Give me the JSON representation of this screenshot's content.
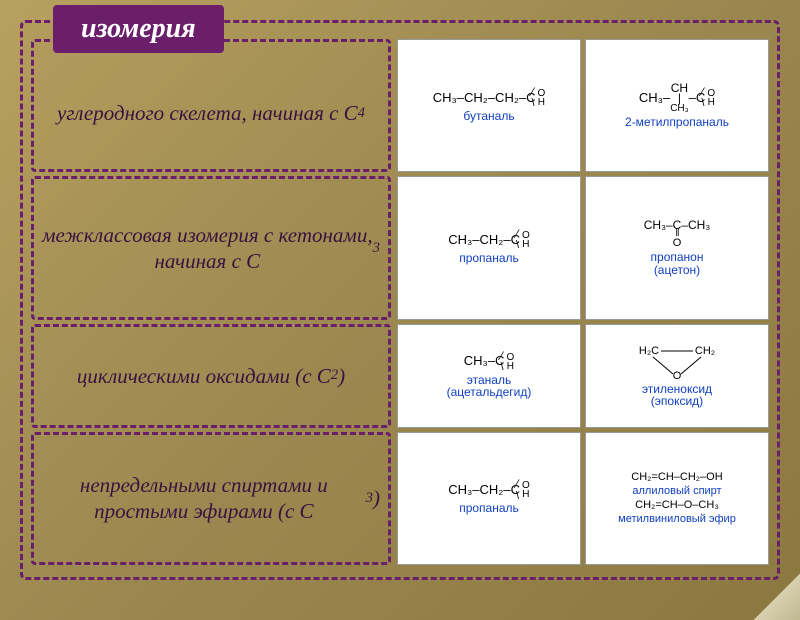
{
  "title": "изомерия",
  "rows": [
    {
      "desc_html": "углеродного скелета, начиная с C<sub>4</sub>",
      "left": {
        "name": "бутаналь",
        "chain": "CH₃–CH₂–CH₂–C",
        "kind": "aldehyde"
      },
      "right": {
        "name": "2-метилпропаналь",
        "chain": "CH₃–CH–C",
        "branch": "CH₃",
        "kind": "aldehyde-branch"
      }
    },
    {
      "desc_html": "межклассовая изомерия с кетонами, начиная с C<sub>3</sub>",
      "left": {
        "name": "пропаналь",
        "chain": "CH₃–CH₂–C",
        "kind": "aldehyde"
      },
      "right": {
        "name": "пропанон",
        "sub": "(ацетон)",
        "chain": "CH₃–C–CH₃",
        "kind": "ketone"
      }
    },
    {
      "desc_html": "циклическими оксидами (с C<sub>2</sub>)",
      "left": {
        "name": "этаналь",
        "sub": "(ацетальдегид)",
        "chain": "CH₃–C",
        "kind": "aldehyde"
      },
      "right": {
        "name": "этиленоксид",
        "sub": "(эпоксид)",
        "kind": "epoxide",
        "l": "H₂C",
        "r": "CH₂",
        "o": "O"
      }
    },
    {
      "desc_html": "непредельными спиртами и простыми эфирами (с C<sub>3</sub>)",
      "left": {
        "name": "пропаналь",
        "chain": "CH₃–CH₂–C",
        "kind": "aldehyde"
      },
      "right": {
        "kind": "stack",
        "items": [
          {
            "f": "CH₂=CH–CH₂–OH",
            "n": "аллиловый спирт"
          },
          {
            "f": "CH₂=CH–O–CH₃",
            "n": "метилвиниловый эфир"
          }
        ]
      }
    }
  ],
  "colors": {
    "border": "#6b1f6b",
    "title_bg": "#6b1f6b",
    "title_fg": "#ffffff",
    "desc_text": "#3a1240",
    "chem_name": "#1040c0",
    "card_bg": "#ffffff"
  }
}
